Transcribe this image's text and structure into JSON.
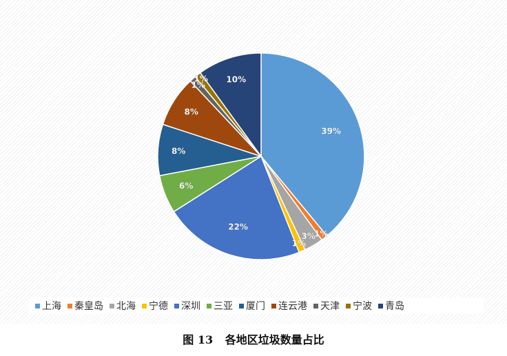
{
  "chart_data": {
    "type": "pie",
    "categories": [
      "上海",
      "秦皇岛",
      "北海",
      "宁德",
      "深圳",
      "三亚",
      "厦门",
      "连云港",
      "天津",
      "宁波",
      "青岛"
    ],
    "values": [
      39,
      1,
      3,
      1,
      22,
      6,
      8,
      8,
      1,
      1,
      10
    ],
    "labels": [
      "39%",
      "1%",
      "3%",
      "1%",
      "22%",
      "6%",
      "8%",
      "8%",
      "1%",
      "1%",
      "10%"
    ],
    "colors": [
      "#5b9bd5",
      "#ed7d31",
      "#a5a5a5",
      "#ffc000",
      "#4472c4",
      "#70ad47",
      "#255e91",
      "#9e480e",
      "#636363",
      "#997300",
      "#264478"
    ],
    "legend_position": "bottom"
  },
  "caption": {
    "figure_number": "图 13",
    "title": "各地区垃圾数量占比"
  }
}
